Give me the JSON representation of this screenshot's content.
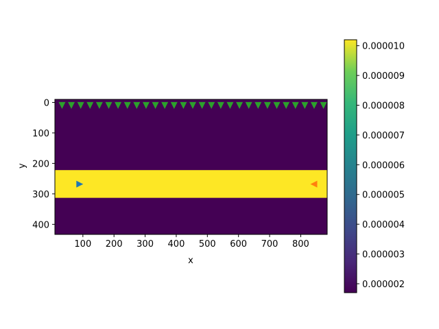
{
  "chart_data": {
    "type": "heatmap",
    "xlabel": "x",
    "ylabel": "y",
    "xlim": [
      10,
      885
    ],
    "ylim": [
      433,
      -10
    ],
    "y_inverted": true,
    "x_ticks": [
      100,
      200,
      300,
      400,
      500,
      600,
      700,
      800
    ],
    "y_ticks": [
      0,
      100,
      200,
      300,
      400
    ],
    "colormap": "viridis",
    "colorbar": {
      "min": 1.7e-06,
      "max": 1.02e-05,
      "ticks": [
        2e-06,
        3e-06,
        4e-06,
        5e-06,
        6e-06,
        7e-06,
        8e-06,
        9e-06,
        1e-05
      ],
      "tick_labels": [
        "0.000002",
        "0.000003",
        "0.000004",
        "0.000005",
        "0.000006",
        "0.000007",
        "0.000008",
        "0.000009",
        "0.000010"
      ]
    },
    "field": {
      "background_value": 1.7e-06,
      "regions": [
        {
          "name": "band",
          "y_range": [
            222,
            313
          ],
          "value": 1.02e-05
        }
      ]
    },
    "series": [
      {
        "marker": "triangle-down",
        "color": "#2ca02c",
        "x": [
          33,
          63,
          93,
          123,
          153,
          183,
          213,
          243,
          273,
          303,
          333,
          363,
          393,
          423,
          453,
          483,
          513,
          543,
          573,
          603,
          633,
          663,
          693,
          723,
          753,
          783,
          813,
          843,
          873
        ],
        "y": [
          10,
          10,
          10,
          10,
          10,
          10,
          10,
          10,
          10,
          10,
          10,
          10,
          10,
          10,
          10,
          10,
          10,
          10,
          10,
          10,
          10,
          10,
          10,
          10,
          10,
          10,
          10,
          10,
          10
        ]
      },
      {
        "marker": "triangle-right",
        "color": "#1f77b4",
        "x": [
          90
        ],
        "y": [
          268
        ]
      },
      {
        "marker": "triangle-left",
        "color": "#ff7f0e",
        "x": [
          842
        ],
        "y": [
          268
        ]
      }
    ]
  }
}
